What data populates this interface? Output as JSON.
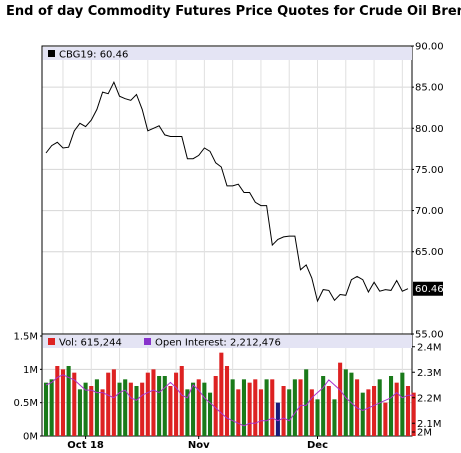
{
  "title": "End of day Commodity Futures Price Quotes for Crude Oil Brent",
  "chart_data": [
    {
      "type": "line",
      "legend": "CBG19: 60.46",
      "ylim": [
        55,
        90
      ],
      "yticks": [
        "90.00",
        "85.00",
        "80.00",
        "75.00",
        "70.00",
        "65.00",
        "55.00"
      ],
      "last_value_label": "60.46",
      "line_color": "#000000",
      "grid": true,
      "values": [
        77.0,
        77.9,
        78.3,
        77.6,
        77.7,
        79.7,
        80.6,
        80.2,
        81.0,
        82.3,
        84.4,
        84.2,
        85.6,
        83.9,
        83.6,
        83.4,
        84.1,
        82.3,
        79.7,
        80.0,
        80.3,
        79.2,
        79.0,
        79.0,
        79.0,
        76.3,
        76.3,
        76.7,
        77.6,
        77.2,
        75.8,
        75.3,
        73.0,
        73.0,
        73.2,
        72.2,
        72.2,
        71.0,
        70.6,
        70.6,
        65.8,
        66.5,
        66.8,
        66.9,
        66.9,
        62.8,
        63.4,
        61.8,
        59.0,
        60.4,
        60.3,
        59.1,
        59.8,
        59.7,
        61.6,
        62.0,
        61.6,
        60.1,
        61.3,
        60.2,
        60.4,
        60.3,
        61.5,
        60.2,
        60.5
      ]
    },
    {
      "type": "bar",
      "legend_volume": "Vol: 615,244",
      "legend_open_interest": "Open Interest: 2,212,476",
      "volume_ylim": [
        0,
        1500000
      ],
      "volume_ticks": [
        "1.5M",
        "1M",
        "0.5M",
        "0M"
      ],
      "oi_ylim": [
        2050000,
        2450000
      ],
      "oi_ticks": [
        "2.4M",
        "2.3M",
        "2.2M",
        "2.1M",
        "2M"
      ],
      "x_labels": [
        "Oct 18",
        "Nov",
        "Dec"
      ],
      "colors": {
        "up": "#1a7a1a",
        "down": "#dd2222",
        "neutral": "#1a1a7a",
        "oi_line": "#aa33cc"
      },
      "volume": [
        800000,
        850000,
        1050000,
        1000000,
        1050000,
        950000,
        700000,
        800000,
        750000,
        850000,
        700000,
        950000,
        1000000,
        800000,
        850000,
        800000,
        750000,
        800000,
        950000,
        1000000,
        900000,
        900000,
        750000,
        950000,
        1050000,
        700000,
        800000,
        850000,
        800000,
        650000,
        900000,
        1250000,
        1050000,
        850000,
        700000,
        850000,
        800000,
        850000,
        700000,
        850000,
        850000,
        500000,
        750000,
        700000,
        850000,
        850000,
        1000000,
        700000,
        550000,
        900000,
        750000,
        550000,
        1100000,
        1000000,
        950000,
        850000,
        650000,
        700000,
        750000,
        850000,
        500000,
        900000,
        800000,
        950000,
        750000,
        650000
      ],
      "direction": [
        "u",
        "u",
        "d",
        "d",
        "u",
        "d",
        "u",
        "u",
        "d",
        "u",
        "d",
        "d",
        "d",
        "u",
        "u",
        "d",
        "u",
        "d",
        "d",
        "d",
        "u",
        "u",
        "d",
        "d",
        "d",
        "u",
        "u",
        "d",
        "u",
        "u",
        "d",
        "d",
        "d",
        "u",
        "d",
        "u",
        "d",
        "d",
        "d",
        "u",
        "d",
        "n",
        "d",
        "u",
        "u",
        "d",
        "u",
        "d",
        "u",
        "u",
        "d",
        "u",
        "d",
        "u",
        "u",
        "d",
        "u",
        "d",
        "d",
        "u",
        "d",
        "u",
        "d",
        "u",
        "d",
        "d"
      ],
      "open_interest": [
        2250000,
        2260000,
        2280000,
        2290000,
        2280000,
        2270000,
        2250000,
        2230000,
        2230000,
        2220000,
        2220000,
        2210000,
        2200000,
        2220000,
        2230000,
        2200000,
        2190000,
        2210000,
        2220000,
        2230000,
        2220000,
        2240000,
        2260000,
        2240000,
        2210000,
        2200000,
        2250000,
        2230000,
        2200000,
        2180000,
        2160000,
        2140000,
        2120000,
        2110000,
        2100000,
        2090000,
        2100000,
        2100000,
        2110000,
        2110000,
        2120000,
        2110000,
        2120000,
        2110000,
        2140000,
        2170000,
        2170000,
        2200000,
        2220000,
        2240000,
        2270000,
        2250000,
        2230000,
        2200000,
        2180000,
        2160000,
        2150000,
        2160000,
        2170000,
        2180000,
        2190000,
        2200000,
        2220000,
        2200000,
        2210000,
        2210000
      ]
    }
  ]
}
